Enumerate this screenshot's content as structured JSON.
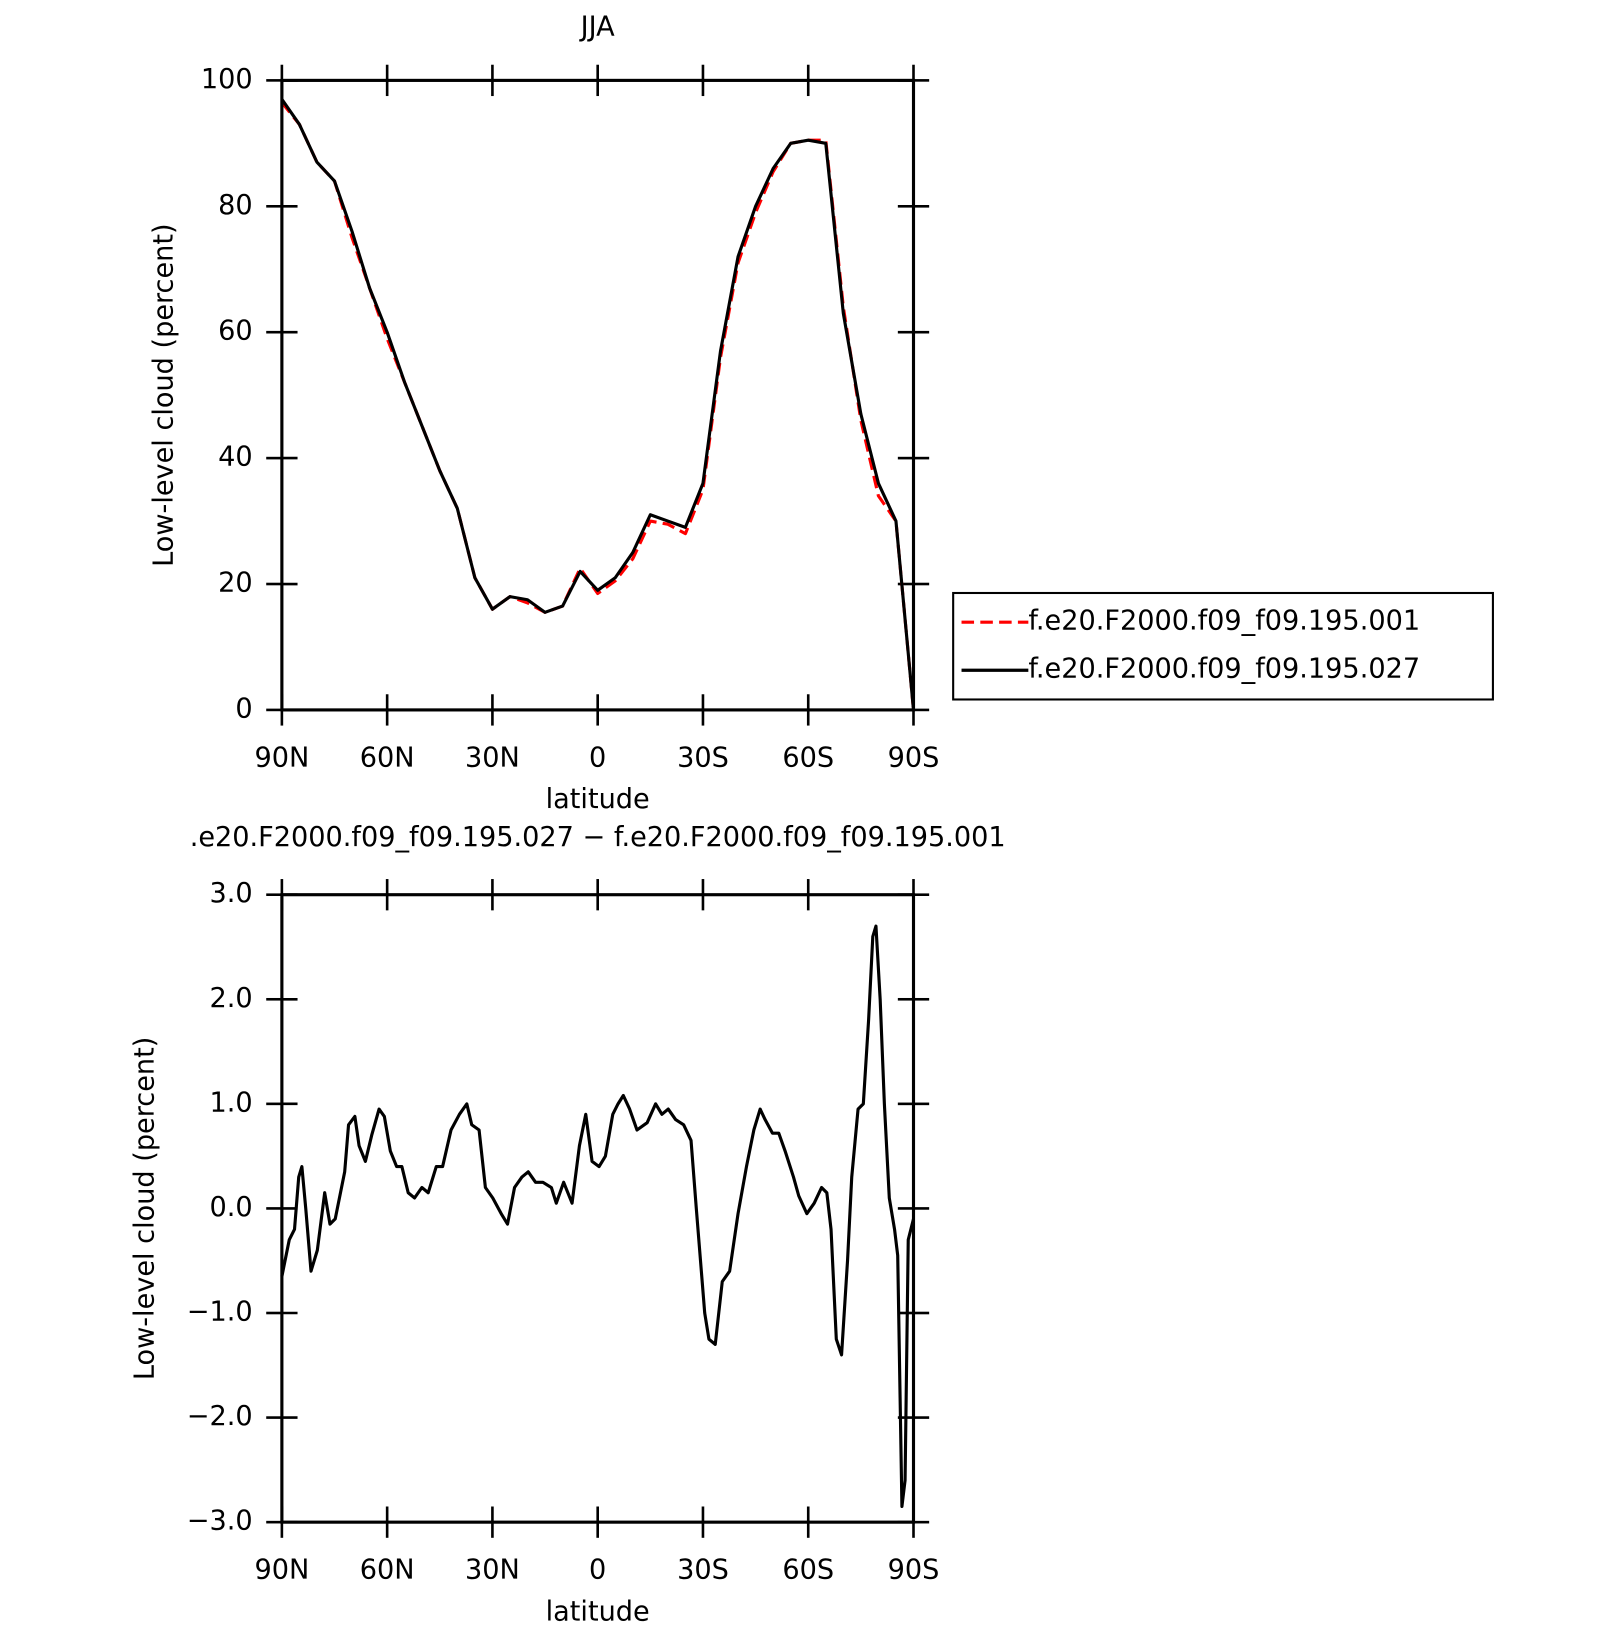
{
  "chart_data": [
    {
      "type": "line",
      "title": "JJA",
      "xlabel": "latitude",
      "ylabel": "Low-level cloud (percent)",
      "x": [
        90,
        85,
        80,
        75,
        70,
        65,
        60,
        55,
        50,
        45,
        40,
        35,
        30,
        25,
        20,
        15,
        10,
        5,
        0,
        -5,
        -10,
        -15,
        -20,
        -25,
        -30,
        -35,
        -40,
        -45,
        -50,
        -55,
        -60,
        -65,
        -70,
        -75,
        -80,
        -85,
        -90
      ],
      "series": [
        {
          "name": "f.e20.F2000.f09_f09.195.001",
          "color": "#ff0000",
          "dash": true,
          "values": [
            96.5,
            93,
            87,
            84,
            75,
            67,
            59,
            52,
            45,
            38,
            32,
            21,
            16,
            18,
            17,
            15.5,
            16.5,
            22.5,
            18.5,
            20.5,
            24,
            30,
            29.5,
            28,
            35,
            56,
            71,
            79,
            85.5,
            90,
            90.5,
            90.5,
            64,
            46,
            34,
            30,
            0
          ]
        },
        {
          "name": "f.e20.F2000.f09_f09.195.027",
          "color": "#000000",
          "dash": false,
          "values": [
            97,
            93,
            87,
            84,
            76,
            67,
            60,
            52,
            45,
            38,
            32,
            21,
            16,
            18,
            17.5,
            15.5,
            16.5,
            22,
            19,
            21,
            25,
            31,
            30,
            29,
            36,
            57,
            72,
            80,
            86,
            90,
            90.5,
            90,
            63,
            47,
            36,
            30,
            0
          ]
        }
      ],
      "xlim": [
        90,
        -90
      ],
      "xticks": [
        {
          "value": 90,
          "label": "90N"
        },
        {
          "value": 60,
          "label": "60N"
        },
        {
          "value": 30,
          "label": "30N"
        },
        0,
        {
          "value": -30,
          "label": "30S"
        },
        {
          "value": -60,
          "label": "60S"
        },
        {
          "value": -90,
          "label": "90S"
        }
      ],
      "ylim": [
        0,
        100
      ],
      "yticks": [
        0,
        20,
        40,
        60,
        80,
        100
      ],
      "legend": "right"
    },
    {
      "type": "line",
      "title": ".e20.F2000.f09_f09.195.027 − f.e20.F2000.f09_f09.195.001",
      "xlabel": "latitude",
      "ylabel": "Low-level cloud (percent)",
      "x": [
        90,
        87.9,
        86.4,
        85.2,
        84.3,
        83.2,
        81.7,
        79.9,
        77.8,
        76.3,
        74.8,
        72.1,
        71.0,
        69.2,
        68.0,
        66.2,
        64.4,
        62.3,
        60.8,
        59.1,
        57.3,
        55.8,
        54.0,
        52.2,
        50.1,
        48.3,
        46.0,
        44.2,
        41.8,
        39.4,
        37.3,
        35.9,
        33.8,
        32.0,
        29.9,
        27.5,
        25.7,
        23.7,
        21.6,
        19.8,
        17.7,
        15.6,
        13.2,
        11.8,
        9.7,
        7.3,
        5.2,
        3.4,
        1.6,
        -0.4,
        -2.2,
        -4.3,
        -5.8,
        -7.3,
        -9.1,
        -11.2,
        -14.1,
        -16.5,
        -18.3,
        -20.1,
        -22.2,
        -24.5,
        -26.6,
        -28.1,
        -30.5,
        -31.7,
        -33.5,
        -35.5,
        -37.6,
        -40.0,
        -42.4,
        -44.5,
        -46.3,
        -47.7,
        -49.8,
        -51.6,
        -53.4,
        -55.8,
        -57.3,
        -59.6,
        -61.7,
        -63.8,
        -65.3,
        -66.5,
        -68.0,
        -69.5,
        -71.2,
        -72.4,
        -74.2,
        -75.7,
        -77.2,
        -78.4,
        -79.3,
        -80.5,
        -81.7,
        -83.1,
        -84.6,
        -85.5,
        -86.7,
        -87.6,
        -88.5,
        -90
      ],
      "series": [
        {
          "color": "#000000",
          "dash": false,
          "values": [
            -0.65,
            -0.3,
            -0.2,
            0.3,
            0.4,
            0.0,
            -0.6,
            -0.4,
            0.15,
            -0.15,
            -0.1,
            0.35,
            0.8,
            0.88,
            0.6,
            0.45,
            0.7,
            0.95,
            0.88,
            0.55,
            0.4,
            0.4,
            0.15,
            0.1,
            0.2,
            0.15,
            0.4,
            0.4,
            0.75,
            0.9,
            1.0,
            0.8,
            0.75,
            0.2,
            0.1,
            -0.05,
            -0.15,
            0.2,
            0.3,
            0.35,
            0.25,
            0.25,
            0.2,
            0.05,
            0.25,
            0.05,
            0.6,
            0.9,
            0.45,
            0.4,
            0.5,
            0.9,
            1.0,
            1.08,
            0.95,
            0.75,
            0.82,
            1.0,
            0.9,
            0.95,
            0.85,
            0.8,
            0.65,
            0.0,
            -1.0,
            -1.25,
            -1.3,
            -0.7,
            -0.6,
            -0.05,
            0.4,
            0.75,
            0.95,
            0.85,
            0.72,
            0.72,
            0.55,
            0.3,
            0.12,
            -0.05,
            0.05,
            0.2,
            0.15,
            -0.2,
            -1.25,
            -1.4,
            -0.5,
            0.3,
            0.95,
            1.0,
            1.8,
            2.6,
            2.7,
            2.0,
            1.0,
            0.1,
            -0.2,
            -0.45,
            -2.85,
            -2.6,
            -0.3,
            -0.1
          ]
        }
      ],
      "xlim": [
        90,
        -90
      ],
      "xticks": [
        {
          "value": 90,
          "label": "90N"
        },
        {
          "value": 60,
          "label": "60N"
        },
        {
          "value": 30,
          "label": "30N"
        },
        0,
        {
          "value": -30,
          "label": "30S"
        },
        {
          "value": -60,
          "label": "60S"
        },
        {
          "value": -90,
          "label": "90S"
        }
      ],
      "ylim": [
        -3,
        3
      ],
      "yticks": [
        {
          "value": -3,
          "label": "−3.0"
        },
        {
          "value": -2,
          "label": "−2.0"
        },
        {
          "value": -1,
          "label": "−1.0"
        },
        {
          "value": 0,
          "label": "0.0"
        },
        {
          "value": 1,
          "label": "1.0"
        },
        {
          "value": 2,
          "label": "2.0"
        },
        {
          "value": 3,
          "label": "3.0"
        }
      ]
    }
  ]
}
